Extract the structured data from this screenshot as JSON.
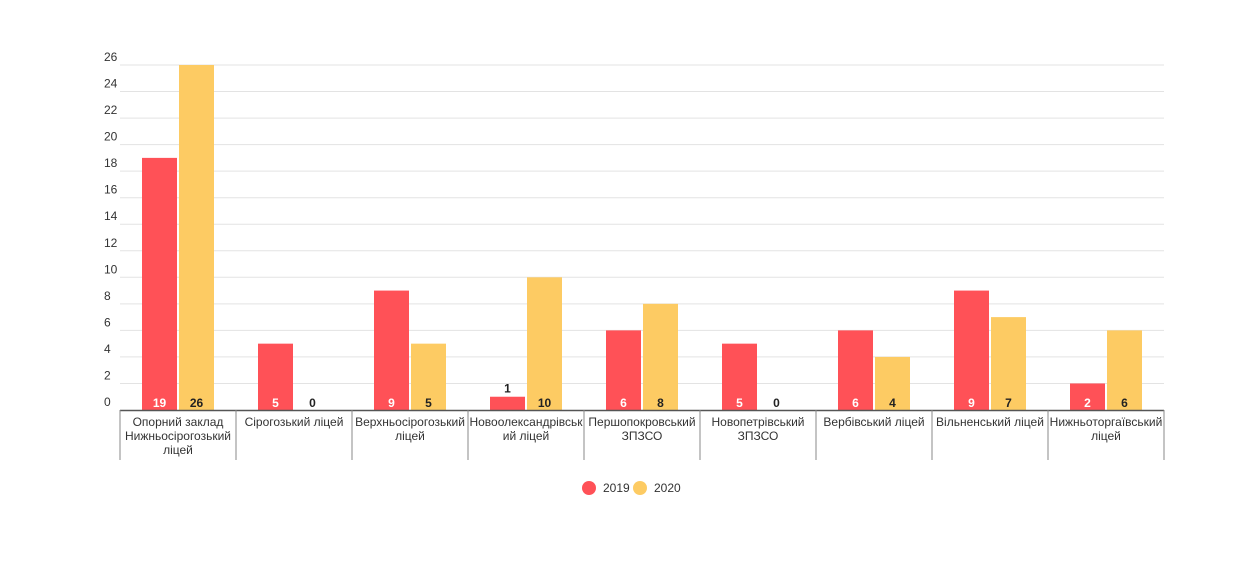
{
  "chart_data": {
    "type": "bar",
    "categories": [
      "Опорний заклад Нижньосірогозький ліцей",
      "Сірогозький ліцей",
      "Верхньосірогозький ліцей",
      "Новоолександрівський ліцей",
      "Першопокровський ЗПЗСО",
      "Новопетрівський ЗПЗСО",
      "Вербівський ліцей",
      "Вільненський ліцей",
      "Нижньоторгаївський ліцей"
    ],
    "category_lines": [
      [
        "Опорний заклад",
        "Нижньосірогозький",
        "ліцей"
      ],
      [
        "Сірогозький ліцей"
      ],
      [
        "Верхньосірогозький",
        "ліцей"
      ],
      [
        "Новоолександрівськ",
        "ий ліцей"
      ],
      [
        "Першопокровський",
        "ЗПЗСО"
      ],
      [
        "Новопетрівський",
        "ЗПЗСО"
      ],
      [
        "Вербівський ліцей"
      ],
      [
        "Вільненський ліцей"
      ],
      [
        "Нижньоторгаївський",
        "ліцей"
      ]
    ],
    "series": [
      {
        "name": "2019",
        "color": "#FF5157",
        "values": [
          19,
          5,
          9,
          1,
          6,
          5,
          6,
          9,
          2
        ]
      },
      {
        "name": "2020",
        "color": "#FDCB63",
        "values": [
          26,
          0,
          5,
          10,
          8,
          0,
          4,
          7,
          6
        ]
      }
    ],
    "ylim": [
      0,
      26
    ],
    "yticks": [
      0,
      2,
      4,
      6,
      8,
      10,
      12,
      14,
      16,
      18,
      20,
      22,
      24,
      26
    ],
    "grid": true,
    "legend_position": "bottom-center",
    "title": "",
    "xlabel": "",
    "ylabel": ""
  }
}
